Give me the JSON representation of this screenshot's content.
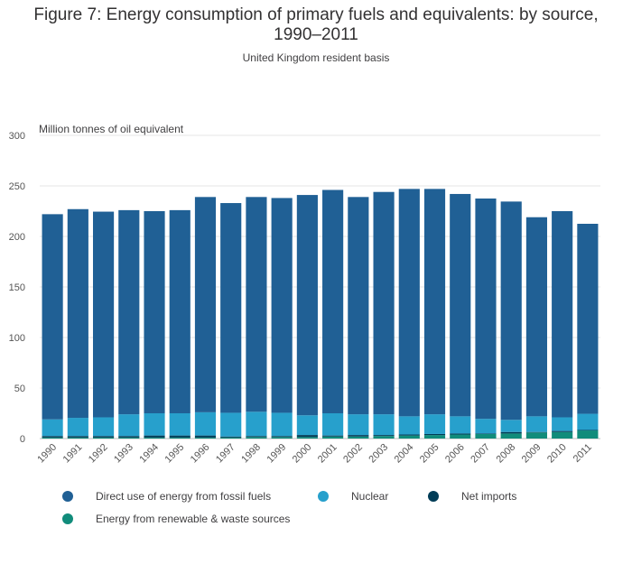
{
  "chart_data": {
    "type": "bar",
    "stacked": true,
    "title": "Figure 7: Energy consumption of primary fuels and equivalents: by source, 1990–2011",
    "title_line1": "Figure 7: Energy consumption of primary fuels and equivalents: by source,",
    "title_line2": "1990–2011",
    "subtitle": "United Kingdom resident basis",
    "ylabel": "Million tonnes of oil equivalent",
    "xlabel": "",
    "ylim": [
      0,
      300
    ],
    "yticks": [
      0,
      50,
      100,
      150,
      200,
      250,
      300
    ],
    "grid": true,
    "categories": [
      "1990",
      "1991",
      "1992",
      "1993",
      "1994",
      "1995",
      "1996",
      "1997",
      "1998",
      "1999",
      "2000",
      "2001",
      "2002",
      "2003",
      "2004",
      "2005",
      "2006",
      "2007",
      "2008",
      "2009",
      "2010",
      "2011"
    ],
    "series": [
      {
        "name": "Energy from renewable & waste sources",
        "color": "#118c7b",
        "values": [
          1,
          1,
          1,
          1,
          1,
          1,
          1,
          1,
          1.5,
          1.5,
          1.5,
          2,
          2,
          2.5,
          3,
          3.5,
          4,
          4.5,
          5,
          6,
          6.5,
          8
        ]
      },
      {
        "name": "Net imports",
        "color": "#003c57",
        "values": [
          1.5,
          1.5,
          1.5,
          1.5,
          2,
          2,
          2,
          1,
          1,
          1,
          2,
          1,
          1.5,
          1,
          1,
          1,
          1,
          0.5,
          1.5,
          0.5,
          1,
          0.5
        ]
      },
      {
        "name": "Nuclear",
        "color": "#27a0cc",
        "values": [
          16.5,
          18,
          18.5,
          21.5,
          22,
          22,
          23,
          23.5,
          24,
          23,
          19.5,
          22,
          20.5,
          20.5,
          18,
          19.5,
          17,
          14.5,
          12,
          15.5,
          13.5,
          16
        ]
      },
      {
        "name": "Direct use of energy from fossil fuels",
        "color": "#206095",
        "values": [
          203,
          206.5,
          203.5,
          202,
          200,
          201,
          213,
          207.5,
          212.5,
          212.5,
          218,
          221,
          215,
          220,
          225,
          223,
          220,
          218,
          216,
          197,
          204,
          188
        ]
      }
    ],
    "legend": [
      {
        "name": "Direct use of energy from fossil fuels",
        "color": "#206095"
      },
      {
        "name": "Nuclear",
        "color": "#27a0cc"
      },
      {
        "name": "Net imports",
        "color": "#003c57"
      },
      {
        "name": "Energy from renewable & waste sources",
        "color": "#118c7b"
      }
    ],
    "legend_position": "bottom"
  }
}
